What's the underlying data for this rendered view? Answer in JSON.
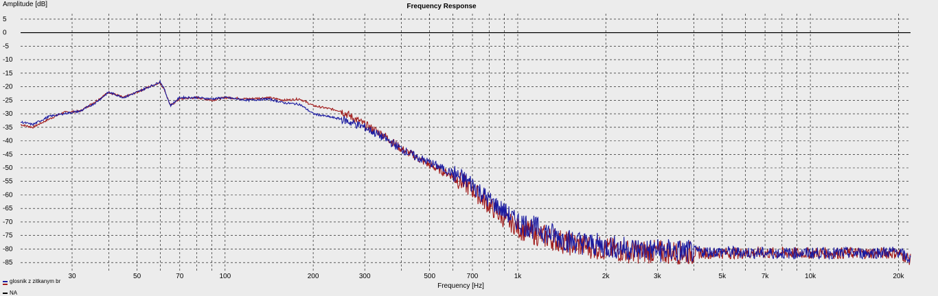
{
  "chart_data": {
    "type": "line",
    "title": "Frequency Response",
    "xlabel": "Frequency [Hz]",
    "ylabel": "Amplitude [dB]",
    "x_scale": "log",
    "xlim": [
      20,
      22000
    ],
    "ylim": [
      -88,
      7
    ],
    "grid": true,
    "x_ticks": [
      {
        "v": 30,
        "label": "30"
      },
      {
        "v": 40,
        "label": ""
      },
      {
        "v": 50,
        "label": "50"
      },
      {
        "v": 60,
        "label": ""
      },
      {
        "v": 70,
        "label": "70"
      },
      {
        "v": 80,
        "label": ""
      },
      {
        "v": 90,
        "label": ""
      },
      {
        "v": 100,
        "label": "100"
      },
      {
        "v": 200,
        "label": "200"
      },
      {
        "v": 300,
        "label": "300"
      },
      {
        "v": 400,
        "label": ""
      },
      {
        "v": 500,
        "label": "500"
      },
      {
        "v": 600,
        "label": ""
      },
      {
        "v": 700,
        "label": "700"
      },
      {
        "v": 800,
        "label": ""
      },
      {
        "v": 900,
        "label": ""
      },
      {
        "v": 1000,
        "label": "1k"
      },
      {
        "v": 2000,
        "label": "2k"
      },
      {
        "v": 3000,
        "label": "3k"
      },
      {
        "v": 4000,
        "label": ""
      },
      {
        "v": 5000,
        "label": "5k"
      },
      {
        "v": 6000,
        "label": ""
      },
      {
        "v": 7000,
        "label": "7k"
      },
      {
        "v": 8000,
        "label": ""
      },
      {
        "v": 9000,
        "label": ""
      },
      {
        "v": 10000,
        "label": "10k"
      },
      {
        "v": 20000,
        "label": "20k"
      }
    ],
    "y_ticks": [
      5,
      0,
      -5,
      -10,
      -15,
      -20,
      -25,
      -30,
      -35,
      -40,
      -45,
      -50,
      -55,
      -60,
      -65,
      -70,
      -75,
      -80,
      -85
    ],
    "legend_position": "bottom-left",
    "series": [
      {
        "name": "glosnik z zitkanym br",
        "color": "#1a1aa0",
        "x": [
          20,
          22,
          25,
          28,
          32,
          36,
          40,
          45,
          50,
          55,
          58,
          60,
          62,
          65,
          70,
          80,
          90,
          100,
          120,
          140,
          160,
          180,
          200,
          250,
          300,
          350,
          400,
          450,
          500,
          600,
          700,
          800,
          900,
          1000,
          1200,
          1500,
          2000,
          2500,
          3000,
          4000,
          5000,
          7000,
          10000,
          15000,
          20000,
          22000
        ],
        "values": [
          -33,
          -34,
          -31,
          -30,
          -29,
          -26,
          -22,
          -24,
          -22,
          -20,
          -19,
          -18,
          -21,
          -27,
          -24,
          -24,
          -24.5,
          -24,
          -25,
          -24.5,
          -26,
          -26.5,
          -30,
          -32,
          -35,
          -39,
          -43,
          -46,
          -48,
          -52,
          -56,
          -62,
          -66,
          -70,
          -73,
          -77,
          -79,
          -80,
          -80.5,
          -81,
          -81,
          -81.5,
          -81.5,
          -81.5,
          -81,
          -84
        ]
      },
      {
        "name": "",
        "color": "#a01a1a",
        "x": [
          20,
          22,
          25,
          28,
          32,
          36,
          40,
          45,
          50,
          55,
          58,
          60,
          62,
          65,
          70,
          80,
          90,
          100,
          120,
          140,
          160,
          180,
          200,
          250,
          300,
          350,
          400,
          450,
          500,
          600,
          700,
          800,
          900,
          1000,
          1200,
          1500,
          2000,
          2500,
          3000,
          4000,
          5000,
          7000,
          10000,
          15000,
          20000,
          22000
        ],
        "values": [
          -34,
          -35,
          -32,
          -29.5,
          -29,
          -25.5,
          -22,
          -24,
          -22,
          -20,
          -19,
          -18.5,
          -21,
          -27,
          -24.5,
          -24,
          -25,
          -24,
          -24.5,
          -24,
          -25,
          -24.5,
          -27,
          -29,
          -34,
          -38,
          -43,
          -46,
          -49,
          -53,
          -58,
          -64,
          -69,
          -72,
          -75,
          -78,
          -80,
          -81,
          -81,
          -81.5,
          -81.5,
          -81.5,
          -81.5,
          -81.5,
          -81.5,
          -84
        ]
      },
      {
        "name": "NA",
        "color": "#000000",
        "x": [],
        "values": []
      }
    ]
  }
}
